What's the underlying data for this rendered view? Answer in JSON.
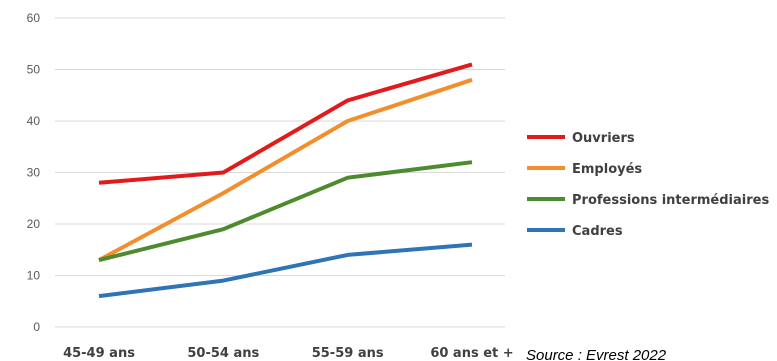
{
  "chart_data": {
    "type": "line",
    "categories": [
      "45-49 ans",
      "50-54 ans",
      "55-59 ans",
      "60 ans et +"
    ],
    "ylim": [
      0,
      60
    ],
    "yticks": [
      0,
      10,
      20,
      30,
      40,
      50,
      60
    ],
    "grid": true,
    "legend_position": "right",
    "series": [
      {
        "name": "Ouvriers",
        "color": "#e31a1c",
        "values": [
          28,
          30,
          44,
          51
        ]
      },
      {
        "name": "Employés",
        "color": "#f28e2b",
        "values": [
          13,
          26,
          40,
          48
        ]
      },
      {
        "name": "Professions intermédiaires",
        "color": "#4e8a2e",
        "values": [
          13,
          19,
          29,
          32
        ]
      },
      {
        "name": "Cadres",
        "color": "#2e75b6",
        "values": [
          6,
          9,
          14,
          16
        ]
      }
    ],
    "annotation": "Source : Evrest 2022"
  }
}
